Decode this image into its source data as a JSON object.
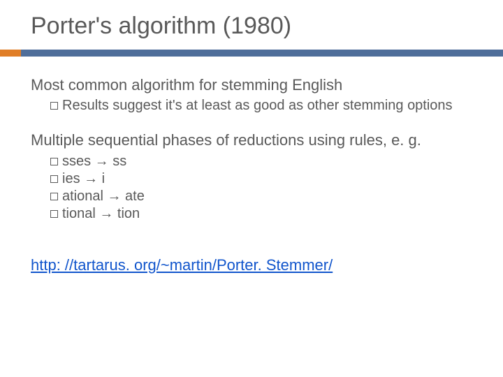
{
  "title": "Porter's algorithm (1980)",
  "colors": {
    "accent": "#e07e27",
    "bar": "#4f6e9a",
    "text": "#595959",
    "link": "#1155cc",
    "background": "#ffffff"
  },
  "typography": {
    "title_fontsize": 34,
    "main_fontsize": 22,
    "sub_fontsize": 20,
    "font_family": "Arial"
  },
  "points": [
    {
      "text": "Most common algorithm for stemming English",
      "subs": [
        "Results suggest it's at least as good as other stemming options"
      ]
    },
    {
      "text": "Multiple sequential phases of reductions using rules, e. g.",
      "subs": [
        "sses → ss",
        "ies → i",
        "ational → ate",
        "tional → tion"
      ]
    }
  ],
  "link": {
    "text": "http: //tartarus. org/~martin/Porter. Stemmer/",
    "href": "http://tartarus.org/~martin/PorterStemmer/"
  }
}
